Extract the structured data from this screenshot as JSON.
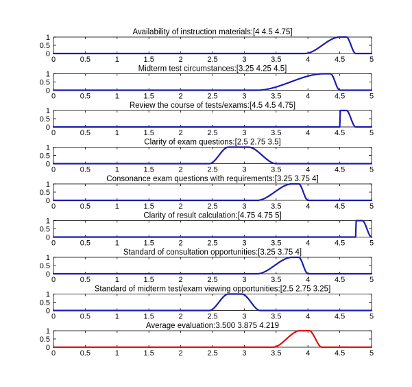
{
  "colors": {
    "normal": "#1b1bb0",
    "average": "#e01010",
    "axes": "#000000",
    "background": "#ffffff"
  },
  "chart_data": {
    "type": "line",
    "curve_shape": "trapezoidal fuzzy membership function (smoothed)",
    "xlim": [
      0,
      5
    ],
    "ylim": [
      0,
      1
    ],
    "x_ticks": [
      "0",
      "0.5",
      "1",
      "1.5",
      "2",
      "2.5",
      "3",
      "3.5",
      "4",
      "4.5",
      "5"
    ],
    "y_ticks": [
      "0",
      "0.5",
      "1"
    ],
    "grid": false,
    "panels": [
      {
        "title": "Availability of instruction materials:[4 4.5 4.75]",
        "a": 4,
        "b": 4.5,
        "c": 4.75,
        "color": "#1b1bb0"
      },
      {
        "title": "Midterm test circumstances:[3.25 4.25 4.5]",
        "a": 3.25,
        "b": 4.25,
        "c": 4.5,
        "color": "#1b1bb0"
      },
      {
        "title": "Review the course of tests/exams:[4.5 4.5 4.75]",
        "a": 4.5,
        "b": 4.5,
        "c": 4.75,
        "color": "#1b1bb0"
      },
      {
        "title": "Clarity of exam questions:[2.5 2.75 3.5]",
        "a": 2.5,
        "b": 2.75,
        "c": 3.5,
        "color": "#1b1bb0"
      },
      {
        "title": "Consonance exam questions with requirements:[3.25 3.75 4]",
        "a": 3.25,
        "b": 3.75,
        "c": 4,
        "color": "#1b1bb0"
      },
      {
        "title": "Clarity of result calculation:[4.75 4.75 5]",
        "a": 4.75,
        "b": 4.75,
        "c": 5,
        "color": "#1b1bb0"
      },
      {
        "title": "Standard of consultation opportunities:[3.25 3.75 4]",
        "a": 3.25,
        "b": 3.75,
        "c": 4,
        "color": "#1b1bb0"
      },
      {
        "title": "Standard of midterm test/exam viewing opportunities:[2.5 2.75 3.25]",
        "a": 2.5,
        "b": 2.75,
        "c": 3.25,
        "color": "#1b1bb0"
      },
      {
        "title": "Average evaluation:3.500 3.875 4.219",
        "a": 3.5,
        "b": 3.875,
        "c": 4.219,
        "color": "#e01010"
      }
    ]
  }
}
